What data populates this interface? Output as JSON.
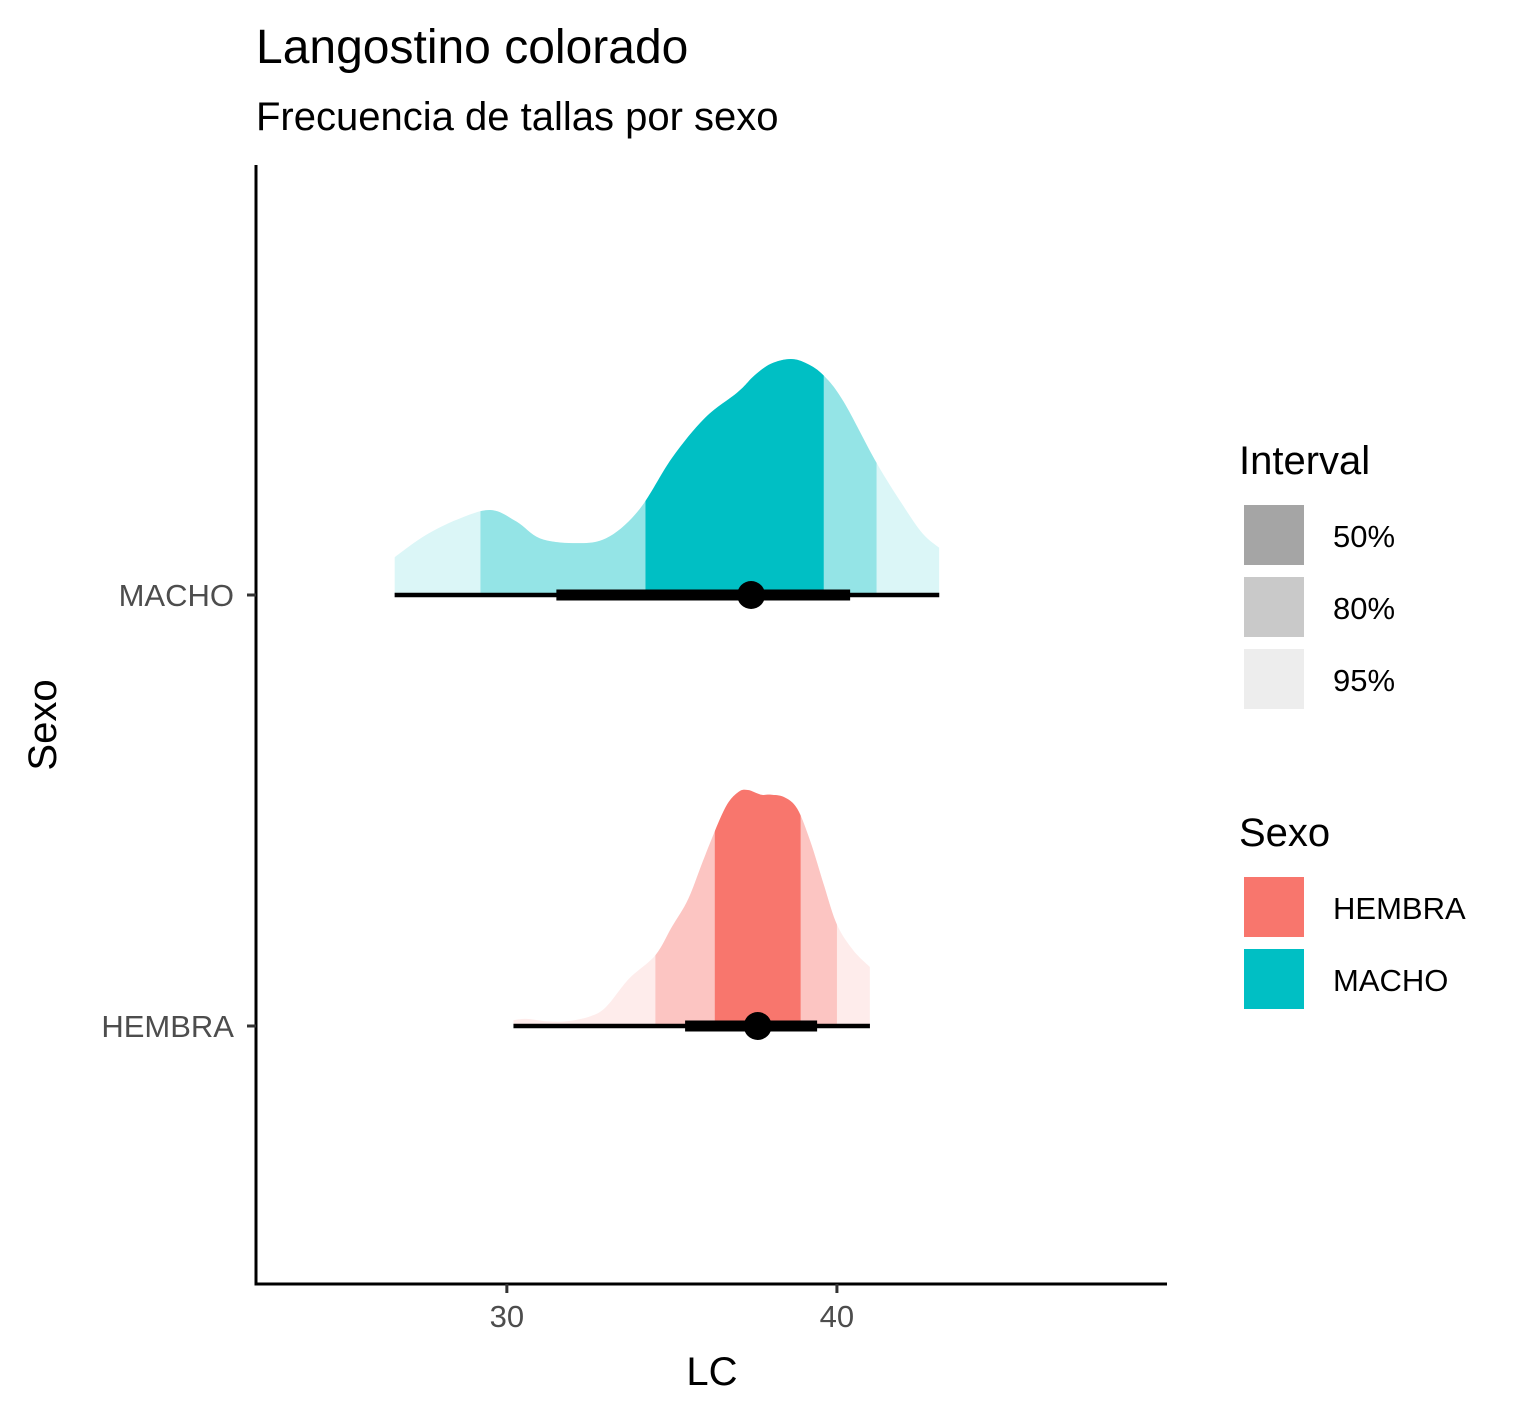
{
  "chart_data": {
    "type": "halfeye",
    "title": "Langostino colorado",
    "subtitle": "Frecuencia de tallas por sexo",
    "xlabel": "LC",
    "ylabel": "Sexo",
    "xlim": [
      22.4,
      50
    ],
    "x_ticks": [
      30,
      40
    ],
    "x_tick_labels": [
      "30",
      "40"
    ],
    "categories": [
      "MACHO",
      "HEMBRA"
    ],
    "grid": false,
    "legend_position": "right",
    "series": [
      {
        "name": "MACHO",
        "color": "#00bfc4",
        "point": 37.4,
        "intervals": {
          "50%": [
            34.2,
            39.6
          ],
          "80%": [
            29.2,
            41.2
          ],
          "95%": [
            26.6,
            43.1
          ]
        },
        "line_intervals": {
          "66%": [
            31.5,
            40.4
          ],
          "95%": [
            26.6,
            43.1
          ]
        },
        "density": [
          [
            26.6,
            0.16
          ],
          [
            27.5,
            0.25
          ],
          [
            28.5,
            0.32
          ],
          [
            29.5,
            0.36
          ],
          [
            30.3,
            0.31
          ],
          [
            31.0,
            0.24
          ],
          [
            32.0,
            0.22
          ],
          [
            33.0,
            0.24
          ],
          [
            34.0,
            0.36
          ],
          [
            35.0,
            0.58
          ],
          [
            36.0,
            0.75
          ],
          [
            37.0,
            0.86
          ],
          [
            37.5,
            0.93
          ],
          [
            38.0,
            0.98
          ],
          [
            38.6,
            1.0
          ],
          [
            39.1,
            0.98
          ],
          [
            39.6,
            0.93
          ],
          [
            40.2,
            0.82
          ],
          [
            41.2,
            0.56
          ],
          [
            42.0,
            0.38
          ],
          [
            42.6,
            0.26
          ],
          [
            43.1,
            0.2
          ]
        ]
      },
      {
        "name": "HEMBRA",
        "color": "#f8766d",
        "point": 37.6,
        "intervals": {
          "50%": [
            36.3,
            38.9
          ],
          "80%": [
            34.5,
            40.0
          ],
          "95%": [
            30.2,
            41.0
          ]
        },
        "line_intervals": {
          "66%": [
            35.4,
            39.4
          ],
          "95%": [
            30.2,
            41.0
          ]
        },
        "density": [
          [
            30.2,
            0.025
          ],
          [
            30.6,
            0.03
          ],
          [
            31.2,
            0.02
          ],
          [
            31.8,
            0.02
          ],
          [
            32.5,
            0.04
          ],
          [
            33.0,
            0.08
          ],
          [
            33.7,
            0.2
          ],
          [
            34.5,
            0.3
          ],
          [
            35.0,
            0.42
          ],
          [
            35.5,
            0.54
          ],
          [
            36.0,
            0.72
          ],
          [
            36.6,
            0.92
          ],
          [
            37.0,
            0.99
          ],
          [
            37.3,
            1.0
          ],
          [
            37.7,
            0.98
          ],
          [
            38.0,
            0.98
          ],
          [
            38.4,
            0.97
          ],
          [
            38.8,
            0.92
          ],
          [
            39.2,
            0.78
          ],
          [
            39.6,
            0.6
          ],
          [
            40.0,
            0.43
          ],
          [
            40.5,
            0.32
          ],
          [
            41.0,
            0.25
          ]
        ]
      }
    ],
    "legends": [
      {
        "title": "Interval",
        "items": [
          {
            "label": "50%",
            "color": "#a5a5a5"
          },
          {
            "label": "80%",
            "color": "#c9c9c9"
          },
          {
            "label": "95%",
            "color": "#ededed"
          }
        ]
      },
      {
        "title": "Sexo",
        "items": [
          {
            "label": "HEMBRA",
            "color": "#f8766d"
          },
          {
            "label": "MACHO",
            "color": "#00bfc4"
          }
        ]
      }
    ]
  }
}
